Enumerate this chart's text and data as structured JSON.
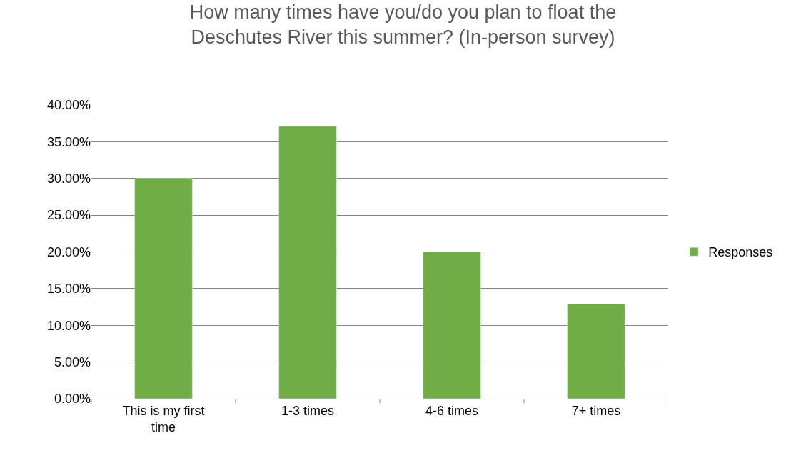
{
  "chart_data": {
    "type": "bar",
    "title": "How many times have you/do you plan to float the Deschutes River this summer? (In-person survey)",
    "categories": [
      "This is my first time",
      "1-3 times",
      "4-6 times",
      "7+ times"
    ],
    "series": [
      {
        "name": "Responses",
        "color": "#70ad47",
        "values": [
          30.0,
          37.1,
          20.0,
          12.9
        ]
      }
    ],
    "ylim": [
      0,
      40
    ],
    "yticks": [
      {
        "value": 0,
        "label": "0.00%"
      },
      {
        "value": 5,
        "label": "5.00%"
      },
      {
        "value": 10,
        "label": "10.00%"
      },
      {
        "value": 15,
        "label": "15.00%"
      },
      {
        "value": 20,
        "label": "20.00%"
      },
      {
        "value": 25,
        "label": "25.00%"
      },
      {
        "value": 30,
        "label": "30.00%"
      },
      {
        "value": 35,
        "label": "35.00%"
      },
      {
        "value": 40,
        "label": "40.00%"
      }
    ],
    "grid": "y",
    "legend": "right"
  }
}
